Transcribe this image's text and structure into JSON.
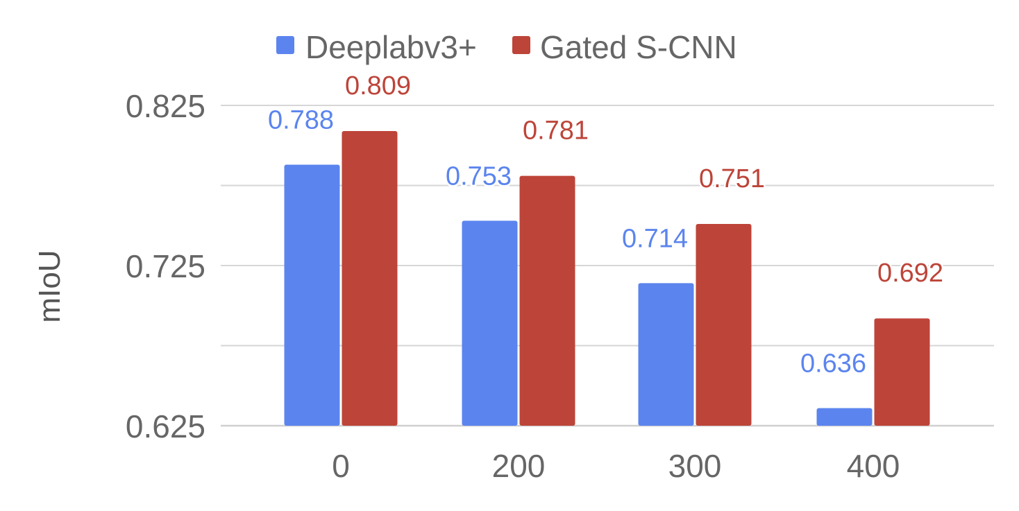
{
  "chart_data": {
    "type": "bar",
    "title": "",
    "xlabel": "",
    "ylabel": "mIoU",
    "categories": [
      "0",
      "200",
      "300",
      "400"
    ],
    "series": [
      {
        "name": "Deeplabv3+",
        "color": "#5b84ee",
        "values": [
          0.788,
          0.753,
          0.714,
          0.636
        ]
      },
      {
        "name": "Gated S-CNN",
        "color": "#bd4439",
        "values": [
          0.809,
          0.781,
          0.751,
          0.692
        ]
      }
    ],
    "ylim": [
      0.625,
      0.825
    ],
    "y_ticks": [
      "0.625",
      "0.725",
      "0.825"
    ],
    "grid": true,
    "legend_position": "top",
    "data_labels": true
  }
}
